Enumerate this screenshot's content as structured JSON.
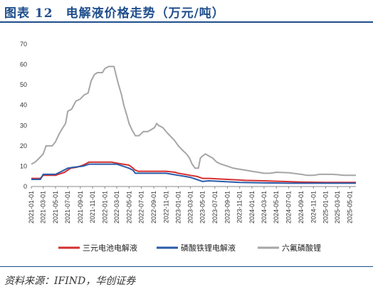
{
  "header": {
    "title": "图表 12　电解液价格走势（万元/吨）"
  },
  "footer": {
    "source": "资料来源：IFIND，华创证券"
  },
  "chart_data": {
    "type": "line",
    "title": "电解液价格走势（万元/吨）",
    "ylim": [
      0,
      70
    ],
    "yticks": [
      "0",
      "10",
      "20",
      "30",
      "40",
      "50",
      "60",
      "70"
    ],
    "xlim": [
      "2021-01-01",
      "2025-05-31"
    ],
    "xticks": [
      "2021-01-01",
      "2021-03-01",
      "2021-05-01",
      "2021-07-01",
      "2021-09-01",
      "2021-11-01",
      "2022-01-01",
      "2022-03-01",
      "2022-05-01",
      "2022-07-01",
      "2022-09-01",
      "2022-11-01",
      "2023-01-01",
      "2023-03-01",
      "2023-05-01",
      "2023-07-01",
      "2023-09-01",
      "2023-11-01",
      "2024-01-01",
      "2024-03-01",
      "2024-05-01",
      "2024-07-01",
      "2024-09-01",
      "2024-11-01",
      "2025-01-01",
      "2025-03-01",
      "2025-05-01"
    ],
    "legend_position": "bottom",
    "grid": false,
    "series": [
      {
        "name": "三元电池电解液",
        "color": "#d32f2f",
        "points": [
          [
            "2021-01-01",
            4
          ],
          [
            "2021-02-15",
            4
          ],
          [
            "2021-03-01",
            5.5
          ],
          [
            "2021-05-01",
            5.5
          ],
          [
            "2021-05-15",
            6
          ],
          [
            "2021-06-15",
            7
          ],
          [
            "2021-07-15",
            9
          ],
          [
            "2021-08-15",
            9.5
          ],
          [
            "2021-09-15",
            10.5
          ],
          [
            "2021-10-15",
            12
          ],
          [
            "2021-12-01",
            12
          ],
          [
            "2022-01-01",
            12
          ],
          [
            "2022-02-01",
            12
          ],
          [
            "2022-03-01",
            11.5
          ],
          [
            "2022-04-01",
            11
          ],
          [
            "2022-05-01",
            10.5
          ],
          [
            "2022-05-15",
            9.5
          ],
          [
            "2022-06-01",
            8
          ],
          [
            "2022-06-15",
            7.5
          ],
          [
            "2022-08-01",
            7.5
          ],
          [
            "2022-11-01",
            7.5
          ],
          [
            "2022-12-15",
            7
          ],
          [
            "2023-01-01",
            6.5
          ],
          [
            "2023-02-01",
            6
          ],
          [
            "2023-03-01",
            5.5
          ],
          [
            "2023-04-01",
            5
          ],
          [
            "2023-05-01",
            4
          ],
          [
            "2023-06-01",
            4
          ],
          [
            "2023-09-01",
            3.5
          ],
          [
            "2023-12-01",
            3
          ],
          [
            "2024-03-01",
            2.8
          ],
          [
            "2024-06-01",
            2.5
          ],
          [
            "2024-09-01",
            2.2
          ],
          [
            "2025-01-01",
            2.0
          ],
          [
            "2025-05-31",
            2.0
          ]
        ]
      },
      {
        "name": "磷酸铁锂电解液",
        "color": "#2a5caa",
        "points": [
          [
            "2021-01-01",
            3.5
          ],
          [
            "2021-02-15",
            3.5
          ],
          [
            "2021-03-01",
            6
          ],
          [
            "2021-05-01",
            6
          ],
          [
            "2021-06-01",
            7.5
          ],
          [
            "2021-07-01",
            9
          ],
          [
            "2021-08-01",
            9.5
          ],
          [
            "2021-09-15",
            10
          ],
          [
            "2021-10-15",
            11
          ],
          [
            "2021-12-01",
            11
          ],
          [
            "2022-01-01",
            11
          ],
          [
            "2022-03-01",
            11
          ],
          [
            "2022-04-01",
            10
          ],
          [
            "2022-05-01",
            9
          ],
          [
            "2022-05-20",
            8
          ],
          [
            "2022-06-01",
            6.5
          ],
          [
            "2022-08-01",
            6.5
          ],
          [
            "2022-11-01",
            6.5
          ],
          [
            "2022-12-01",
            6
          ],
          [
            "2023-01-01",
            5.5
          ],
          [
            "2023-02-01",
            5
          ],
          [
            "2023-03-01",
            4.5
          ],
          [
            "2023-04-01",
            3.5
          ],
          [
            "2023-05-01",
            2.5
          ],
          [
            "2023-06-01",
            2.8
          ],
          [
            "2023-08-01",
            2.5
          ],
          [
            "2023-11-01",
            2
          ],
          [
            "2024-03-01",
            1.8
          ],
          [
            "2024-07-01",
            1.6
          ],
          [
            "2025-01-01",
            1.6
          ],
          [
            "2025-05-31",
            1.6
          ]
        ]
      },
      {
        "name": "六氟磷酸锂",
        "color": "#a6a6a6",
        "points": [
          [
            "2021-01-01",
            11
          ],
          [
            "2021-01-20",
            12
          ],
          [
            "2021-02-10",
            14
          ],
          [
            "2021-03-01",
            16
          ],
          [
            "2021-03-15",
            20
          ],
          [
            "2021-04-15",
            20
          ],
          [
            "2021-05-01",
            22
          ],
          [
            "2021-05-20",
            26
          ],
          [
            "2021-06-01",
            28
          ],
          [
            "2021-06-20",
            31
          ],
          [
            "2021-07-01",
            37
          ],
          [
            "2021-07-20",
            38
          ],
          [
            "2021-08-10",
            42
          ],
          [
            "2021-09-01",
            43
          ],
          [
            "2021-09-20",
            45
          ],
          [
            "2021-10-10",
            46
          ],
          [
            "2021-10-25",
            52
          ],
          [
            "2021-11-10",
            55
          ],
          [
            "2021-11-25",
            56
          ],
          [
            "2021-12-20",
            56
          ],
          [
            "2022-01-01",
            58
          ],
          [
            "2022-01-20",
            59
          ],
          [
            "2022-02-15",
            59
          ],
          [
            "2022-02-25",
            55
          ],
          [
            "2022-03-10",
            50
          ],
          [
            "2022-03-25",
            45
          ],
          [
            "2022-04-05",
            40
          ],
          [
            "2022-04-20",
            35
          ],
          [
            "2022-05-01",
            31
          ],
          [
            "2022-05-15",
            28
          ],
          [
            "2022-06-01",
            25
          ],
          [
            "2022-06-20",
            25
          ],
          [
            "2022-07-10",
            27
          ],
          [
            "2022-08-01",
            27
          ],
          [
            "2022-08-20",
            28
          ],
          [
            "2022-09-05",
            29
          ],
          [
            "2022-09-15",
            31
          ],
          [
            "2022-09-25",
            30
          ],
          [
            "2022-10-15",
            29
          ],
          [
            "2022-11-01",
            27
          ],
          [
            "2022-11-20",
            25
          ],
          [
            "2022-12-10",
            23
          ],
          [
            "2023-01-01",
            20
          ],
          [
            "2023-01-20",
            18
          ],
          [
            "2023-02-10",
            16
          ],
          [
            "2023-02-25",
            14
          ],
          [
            "2023-03-10",
            11
          ],
          [
            "2023-03-25",
            9
          ],
          [
            "2023-04-10",
            9
          ],
          [
            "2023-04-20",
            14
          ],
          [
            "2023-05-01",
            15
          ],
          [
            "2023-05-15",
            16
          ],
          [
            "2023-06-01",
            15
          ],
          [
            "2023-06-20",
            14
          ],
          [
            "2023-07-10",
            12
          ],
          [
            "2023-08-01",
            11
          ],
          [
            "2023-09-01",
            10
          ],
          [
            "2023-10-01",
            9
          ],
          [
            "2023-11-01",
            8.5
          ],
          [
            "2023-12-01",
            8
          ],
          [
            "2024-01-01",
            7.5
          ],
          [
            "2024-02-01",
            7
          ],
          [
            "2024-03-01",
            6.5
          ],
          [
            "2024-04-01",
            6.5
          ],
          [
            "2024-05-01",
            7
          ],
          [
            "2024-07-01",
            6.8
          ],
          [
            "2024-09-01",
            6
          ],
          [
            "2024-10-01",
            5.5
          ],
          [
            "2024-11-01",
            5.5
          ],
          [
            "2024-12-01",
            6
          ],
          [
            "2025-02-01",
            6
          ],
          [
            "2025-03-01",
            5.8
          ],
          [
            "2025-04-01",
            5.5
          ],
          [
            "2025-05-31",
            5.5
          ]
        ]
      }
    ]
  }
}
